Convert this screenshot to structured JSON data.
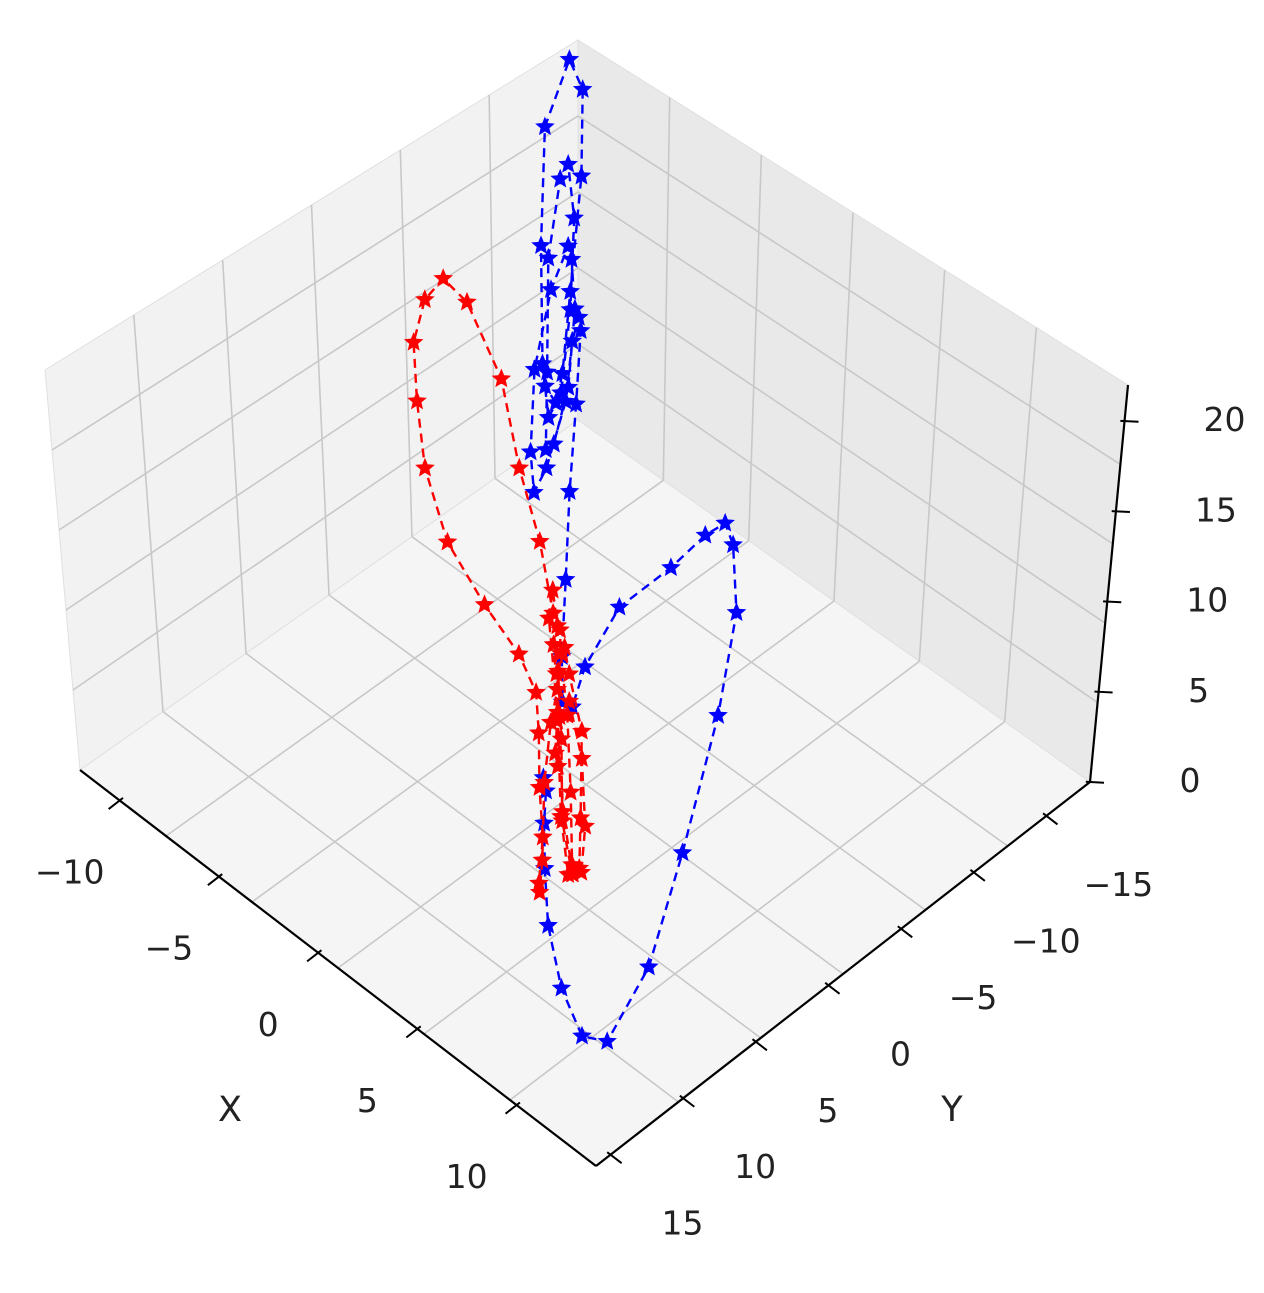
{
  "chart_data": {
    "type": "scatter",
    "projection": "3d",
    "xlabel": "X",
    "ylabel": "Y",
    "zlabel": "",
    "xlim": [
      -12,
      14
    ],
    "ylim": [
      -18,
      16
    ],
    "zlim": [
      0,
      22
    ],
    "x_ticks": [
      "10",
      "5",
      "0",
      "−5",
      "−10"
    ],
    "y_ticks": [
      "−15",
      "−10",
      "−5",
      "0",
      "5",
      "10",
      "15"
    ],
    "z_ticks": [
      "20",
      "15",
      "10",
      "5",
      "0"
    ],
    "grid": true,
    "line_style": "dashed",
    "marker": "star",
    "series": [
      {
        "color": "#0000ff",
        "points": [
          [
            0.0,
            0.5,
            0.0
          ],
          [
            0.5,
            1.0,
            0.0
          ],
          [
            1.5,
            2.5,
            0.0
          ],
          [
            3.0,
            4.5,
            0.0
          ],
          [
            5.0,
            7.0,
            0.1
          ],
          [
            7.5,
            9.5,
            0.3
          ],
          [
            10.0,
            11.5,
            1.0
          ],
          [
            12.0,
            12.5,
            3.0
          ],
          [
            13.0,
            11.0,
            7.0
          ],
          [
            12.5,
            8.0,
            11.0
          ],
          [
            11.0,
            3.5,
            14.5
          ],
          [
            9.0,
            -0.5,
            16.0
          ],
          [
            7.0,
            -3.0,
            16.5
          ],
          [
            5.5,
            -4.5,
            15.5
          ],
          [
            4.5,
            -4.5,
            14.0
          ],
          [
            3.5,
            -3.5,
            12.0
          ],
          [
            2.0,
            -2.0,
            9.5
          ],
          [
            1.0,
            -1.0,
            6.0
          ],
          [
            0.5,
            -0.8,
            3.5
          ],
          [
            -0.5,
            -1.5,
            2.5
          ],
          [
            -2.0,
            -3.5,
            2.5
          ],
          [
            -4.0,
            -6.5,
            3.2
          ],
          [
            -6.0,
            -9.5,
            4.5
          ],
          [
            -7.5,
            -12.0,
            6.5
          ],
          [
            -8.0,
            -13.0,
            9.5
          ],
          [
            -7.0,
            -11.5,
            12.0
          ],
          [
            -5.5,
            -9.0,
            13.5
          ],
          [
            -4.0,
            -6.5,
            13.0
          ],
          [
            -3.5,
            -4.5,
            11.0
          ],
          [
            -4.5,
            -5.0,
            8.5
          ],
          [
            -6.5,
            -7.5,
            7.5
          ],
          [
            -8.5,
            -10.5,
            8.5
          ],
          [
            -9.5,
            -13.0,
            10.5
          ],
          [
            -9.0,
            -13.5,
            13.0
          ],
          [
            -7.0,
            -11.0,
            15.5
          ],
          [
            -5.0,
            -8.5,
            16.0
          ],
          [
            -3.5,
            -6.0,
            14.5
          ],
          [
            -3.5,
            -5.0,
            12.0
          ],
          [
            -5.0,
            -6.5,
            9.5
          ],
          [
            -7.5,
            -10.0,
            9.5
          ],
          [
            -10.0,
            -13.5,
            11.5
          ],
          [
            -10.5,
            -15.0,
            14.5
          ],
          [
            -9.0,
            -13.5,
            17.5
          ],
          [
            -6.5,
            -10.5,
            18.5
          ],
          [
            -4.5,
            -7.5,
            17.0
          ],
          [
            -3.5,
            -5.5,
            14.5
          ],
          [
            -4.5,
            -6.0,
            12.0
          ],
          [
            -7.0,
            -9.0,
            11.0
          ],
          [
            -10.0,
            -13.0,
            12.5
          ],
          [
            -12.0,
            -16.0,
            15.5
          ],
          [
            -11.5,
            -17.0,
            19.0
          ],
          [
            -9.0,
            -14.5,
            21.0
          ],
          [
            -6.5,
            -11.0,
            20.5
          ],
          [
            -4.5,
            -7.5,
            18.0
          ],
          [
            -3.8,
            -6.0,
            15.0
          ],
          [
            -4.5,
            -6.5,
            12.5
          ],
          [
            -6.5,
            -8.5,
            10.5
          ]
        ]
      },
      {
        "color": "#ff0000",
        "points": [
          [
            0.0,
            -0.5,
            0.0
          ],
          [
            -0.5,
            -1.0,
            0.0
          ],
          [
            -1.5,
            -2.5,
            0.0
          ],
          [
            -3.0,
            -4.5,
            0.1
          ],
          [
            -5.0,
            -7.0,
            0.2
          ],
          [
            -7.5,
            -9.5,
            0.5
          ],
          [
            -10.0,
            -11.5,
            1.2
          ],
          [
            -12.0,
            -13.0,
            3.5
          ],
          [
            -13.0,
            -12.0,
            7.5
          ],
          [
            -12.0,
            -9.0,
            11.5
          ],
          [
            -10.0,
            -5.0,
            14.5
          ],
          [
            -8.0,
            -1.5,
            16.0
          ],
          [
            -6.0,
            1.0,
            16.0
          ],
          [
            -4.5,
            2.5,
            14.5
          ],
          [
            -3.0,
            3.0,
            12.0
          ],
          [
            -1.5,
            2.5,
            9.5
          ],
          [
            -0.5,
            1.5,
            7.0
          ],
          [
            0.0,
            1.0,
            5.0
          ],
          [
            0.5,
            1.5,
            3.5
          ],
          [
            2.0,
            3.5,
            3.0
          ],
          [
            4.0,
            6.0,
            3.5
          ],
          [
            6.0,
            9.0,
            4.5
          ],
          [
            7.5,
            11.0,
            6.5
          ],
          [
            8.0,
            11.5,
            9.0
          ],
          [
            7.0,
            10.0,
            11.5
          ],
          [
            5.5,
            7.5,
            12.0
          ],
          [
            4.0,
            5.0,
            11.0
          ],
          [
            3.5,
            3.5,
            9.0
          ],
          [
            4.5,
            4.0,
            7.0
          ],
          [
            6.5,
            6.5,
            6.5
          ],
          [
            8.5,
            9.5,
            7.5
          ],
          [
            9.5,
            11.5,
            9.5
          ],
          [
            9.0,
            11.5,
            12.0
          ],
          [
            7.5,
            9.5,
            14.0
          ],
          [
            5.5,
            7.0,
            14.5
          ],
          [
            4.0,
            4.5,
            13.0
          ],
          [
            3.5,
            3.5,
            10.5
          ],
          [
            4.5,
            4.0,
            8.5
          ],
          [
            7.0,
            7.5,
            8.0
          ],
          [
            9.5,
            11.0,
            9.5
          ],
          [
            11.0,
            13.5,
            12.0
          ],
          [
            10.5,
            13.5,
            15.0
          ],
          [
            8.5,
            11.0,
            17.0
          ],
          [
            6.0,
            8.0,
            17.0
          ],
          [
            4.5,
            5.5,
            15.0
          ],
          [
            3.8,
            4.5,
            12.5
          ],
          [
            4.5,
            5.0,
            10.0
          ],
          [
            6.5,
            7.5,
            9.0
          ],
          [
            9.5,
            11.5,
            10.0
          ],
          [
            11.5,
            14.5,
            13.0
          ],
          [
            11.5,
            15.0,
            16.5
          ],
          [
            9.5,
            12.5,
            19.0
          ],
          [
            6.5,
            9.0,
            19.5
          ],
          [
            4.5,
            6.0,
            17.5
          ],
          [
            4.0,
            5.0,
            14.5
          ]
        ]
      }
    ]
  }
}
